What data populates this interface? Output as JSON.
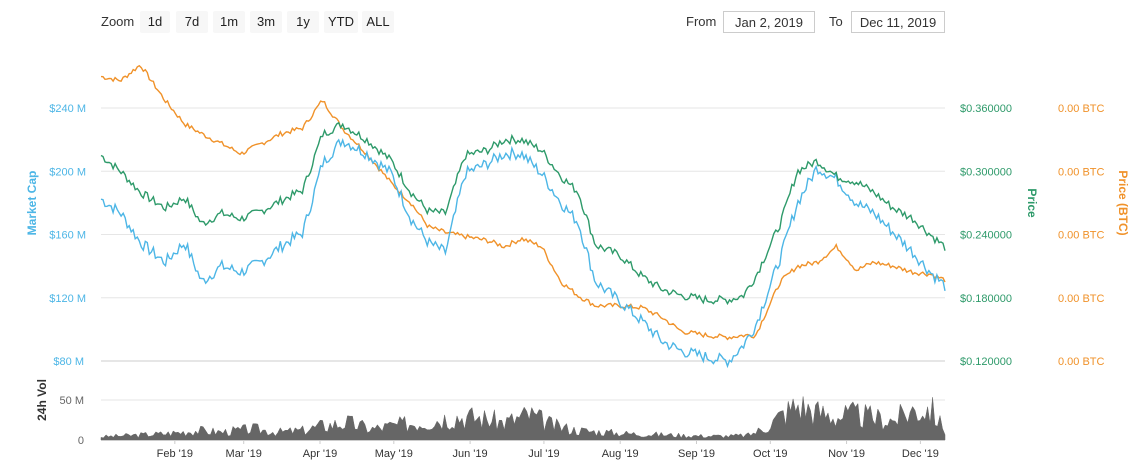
{
  "toolbar": {
    "zoom_label": "Zoom",
    "zoom_buttons": [
      "1d",
      "7d",
      "1m",
      "3m",
      "1y",
      "YTD",
      "ALL"
    ],
    "from_label": "From",
    "from_value": "Jan 2, 2019",
    "to_label": "To",
    "to_value": "Dec 11, 2019"
  },
  "colors": {
    "market_cap": "#4db6e6",
    "price": "#2e9a6a",
    "price_btc": "#f0922a",
    "volume": "#666666",
    "grid": "#e6e6e6"
  },
  "chart_data": [
    {
      "type": "line",
      "xlabel": "",
      "x_ticks": [
        "Feb '19",
        "Mar '19",
        "Apr '19",
        "May '19",
        "Jun '19",
        "Jul '19",
        "Aug '19",
        "Sep '19",
        "Oct '19",
        "Nov '19",
        "Dec '19"
      ],
      "y_left_label": "Market Cap",
      "y_left_ticks": [
        "$120 M",
        "$160 M",
        "$200 M",
        "$240 M"
      ],
      "y_left_lim": [
        100,
        260
      ],
      "y_right_label": "Price",
      "y_right_ticks": [
        "$0.120000",
        "$0.180000",
        "$0.240000",
        "$0.300000",
        "$0.360000"
      ],
      "y_right2_label": "Price (BTC)",
      "y_right2_ticks": [
        "0.00 BTC",
        "0.00 BTC",
        "0.00 BTC",
        "0.00 BTC",
        "0.00 BTC"
      ],
      "series": [
        {
          "name": "Market Cap",
          "x": [
            "2019-01-02",
            "2019-01-10",
            "2019-01-18",
            "2019-01-28",
            "2019-02-05",
            "2019-02-12",
            "2019-02-20",
            "2019-02-28",
            "2019-03-08",
            "2019-03-16",
            "2019-03-25",
            "2019-04-02",
            "2019-04-10",
            "2019-04-20",
            "2019-04-30",
            "2019-05-08",
            "2019-05-15",
            "2019-05-22",
            "2019-05-30",
            "2019-06-08",
            "2019-06-15",
            "2019-06-22",
            "2019-06-30",
            "2019-07-08",
            "2019-07-15",
            "2019-07-22",
            "2019-08-01",
            "2019-08-10",
            "2019-08-18",
            "2019-08-26",
            "2019-09-05",
            "2019-09-14",
            "2019-09-20",
            "2019-09-25",
            "2019-10-05",
            "2019-10-12",
            "2019-10-20",
            "2019-10-28",
            "2019-11-05",
            "2019-11-12",
            "2019-11-20",
            "2019-11-28",
            "2019-12-05",
            "2019-12-11"
          ],
          "values": [
            182,
            175,
            160,
            150,
            160,
            140,
            148,
            145,
            150,
            158,
            165,
            200,
            212,
            205,
            195,
            172,
            160,
            155,
            195,
            200,
            205,
            205,
            195,
            180,
            170,
            140,
            130,
            120,
            110,
            105,
            102,
            100,
            108,
            118,
            152,
            180,
            198,
            192,
            180,
            175,
            165,
            155,
            145,
            138
          ]
        },
        {
          "name": "Price",
          "x": [
            "2019-01-02",
            "2019-01-10",
            "2019-01-18",
            "2019-01-28",
            "2019-02-05",
            "2019-02-12",
            "2019-02-20",
            "2019-02-28",
            "2019-03-08",
            "2019-03-16",
            "2019-03-25",
            "2019-04-02",
            "2019-04-10",
            "2019-04-20",
            "2019-04-30",
            "2019-05-08",
            "2019-05-15",
            "2019-05-22",
            "2019-05-30",
            "2019-06-08",
            "2019-06-15",
            "2019-06-22",
            "2019-06-30",
            "2019-07-08",
            "2019-07-15",
            "2019-07-22",
            "2019-08-01",
            "2019-08-10",
            "2019-08-18",
            "2019-08-26",
            "2019-09-05",
            "2019-09-14",
            "2019-09-20",
            "2019-09-25",
            "2019-10-05",
            "2019-10-12",
            "2019-10-20",
            "2019-10-28",
            "2019-11-05",
            "2019-11-12",
            "2019-11-20",
            "2019-11-28",
            "2019-12-05",
            "2019-12-11"
          ],
          "values": [
            0.315,
            0.3,
            0.28,
            0.265,
            0.275,
            0.25,
            0.26,
            0.255,
            0.262,
            0.272,
            0.282,
            0.335,
            0.345,
            0.33,
            0.31,
            0.28,
            0.262,
            0.26,
            0.315,
            0.32,
            0.33,
            0.33,
            0.32,
            0.295,
            0.28,
            0.23,
            0.22,
            0.2,
            0.188,
            0.182,
            0.178,
            0.178,
            0.182,
            0.2,
            0.25,
            0.3,
            0.31,
            0.295,
            0.29,
            0.28,
            0.265,
            0.255,
            0.24,
            0.228
          ]
        },
        {
          "name": "Price (BTC)",
          "x": [
            "2019-01-02",
            "2019-01-10",
            "2019-01-18",
            "2019-01-28",
            "2019-02-05",
            "2019-02-12",
            "2019-02-20",
            "2019-02-28",
            "2019-03-08",
            "2019-03-16",
            "2019-03-25",
            "2019-04-02",
            "2019-04-10",
            "2019-04-20",
            "2019-04-30",
            "2019-05-08",
            "2019-05-15",
            "2019-05-22",
            "2019-05-30",
            "2019-06-08",
            "2019-06-15",
            "2019-06-22",
            "2019-06-30",
            "2019-07-08",
            "2019-07-15",
            "2019-07-22",
            "2019-08-01",
            "2019-08-10",
            "2019-08-18",
            "2019-08-26",
            "2019-09-05",
            "2019-09-14",
            "2019-09-20",
            "2019-09-25",
            "2019-10-05",
            "2019-10-12",
            "2019-10-20",
            "2019-10-28",
            "2019-11-05",
            "2019-11-12",
            "2019-11-20",
            "2019-11-28",
            "2019-12-05",
            "2019-12-11"
          ],
          "values": [
            244,
            242,
            250,
            232,
            220,
            215,
            210,
            205,
            210,
            215,
            218,
            232,
            218,
            205,
            190,
            180,
            168,
            165,
            163,
            161,
            158,
            162,
            158,
            140,
            133,
            128,
            128,
            127,
            122,
            115,
            113,
            112,
            113,
            113,
            140,
            148,
            150,
            158,
            146,
            150,
            148,
            145,
            144,
            141
          ]
        }
      ]
    },
    {
      "type": "area",
      "y_label": "24h Vol",
      "y_ticks": [
        "0",
        "50 M",
        "$80 M"
      ],
      "y_lim": [
        0,
        80
      ],
      "series": [
        {
          "name": "24h Vol",
          "x": [
            "2019-01-02",
            "2019-01-15",
            "2019-01-28",
            "2019-02-10",
            "2019-02-20",
            "2019-03-05",
            "2019-03-15",
            "2019-03-25",
            "2019-04-02",
            "2019-04-12",
            "2019-04-22",
            "2019-05-05",
            "2019-05-15",
            "2019-05-25",
            "2019-06-05",
            "2019-06-15",
            "2019-06-25",
            "2019-07-05",
            "2019-07-15",
            "2019-07-25",
            "2019-08-05",
            "2019-08-15",
            "2019-08-25",
            "2019-09-05",
            "2019-09-15",
            "2019-09-22",
            "2019-09-28",
            "2019-10-05",
            "2019-10-12",
            "2019-10-20",
            "2019-10-28",
            "2019-11-05",
            "2019-11-12",
            "2019-11-20",
            "2019-11-28",
            "2019-12-05",
            "2019-12-11"
          ],
          "values": [
            4,
            6,
            8,
            12,
            10,
            14,
            10,
            12,
            18,
            22,
            14,
            20,
            24,
            30,
            28,
            22,
            32,
            18,
            12,
            10,
            8,
            7,
            6,
            5,
            5,
            6,
            14,
            30,
            45,
            35,
            30,
            32,
            28,
            25,
            38,
            40,
            12
          ]
        }
      ]
    }
  ]
}
